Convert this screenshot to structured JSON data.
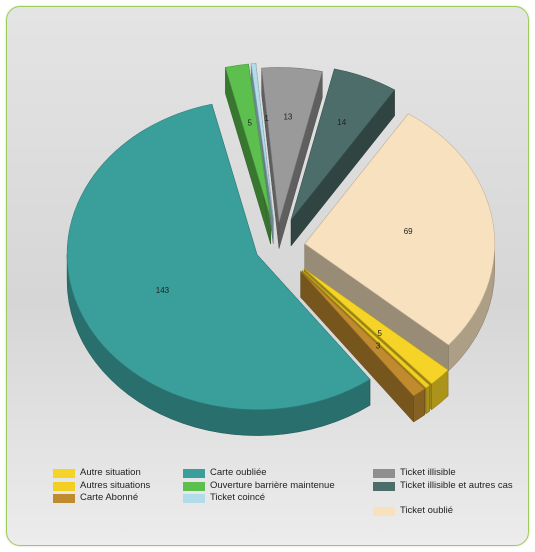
{
  "chart_data": {
    "type": "pie",
    "title": "",
    "style": "3d-exploded",
    "legend_position": "bottom",
    "slices": [
      {
        "label": "Autre situation",
        "value": 5,
        "color": "#f5d327"
      },
      {
        "label": "Autres situations",
        "value": 1,
        "color": "#f2cf22"
      },
      {
        "label": "Carte Abonné",
        "value": 3,
        "color": "#c08b2f"
      },
      {
        "label": "Carte oubliée",
        "value": 143,
        "color": "#3a9e9b"
      },
      {
        "label": "Ouverture barrière maintenue",
        "value": 5,
        "color": "#5cbf4e"
      },
      {
        "label": "Ticket coincé",
        "value": 1,
        "color": "#b2dcea"
      },
      {
        "label": "Ticket illisible",
        "value": 13,
        "color": "#9a9a9a"
      },
      {
        "label": "Ticket illisible et autres cas",
        "value": 14,
        "color": "#4d6d6a"
      },
      {
        "label": "Ticket oublié",
        "value": 69,
        "color": "#f7e1bf"
      }
    ],
    "data_labels": [
      {
        "slice": "Carte oubliée",
        "text": "143"
      },
      {
        "slice": "Ticket oublié",
        "text": "69"
      },
      {
        "slice": "Ticket illisible et autres cas",
        "text": "14"
      },
      {
        "slice": "Ticket illisible",
        "text": "13"
      },
      {
        "slice": "Ouverture barrière maintenue",
        "text": "5"
      },
      {
        "slice": "Ticket coincé",
        "text": "1"
      },
      {
        "slice": "Autre situation",
        "text": "5"
      },
      {
        "slice": "Carte Abonné",
        "text": "3"
      }
    ]
  },
  "legend": {
    "columns": [
      [
        {
          "label": "Autre situation",
          "color": "#f5d327"
        },
        {
          "label": "Autres situations",
          "color": "#f2cf22"
        },
        {
          "label": "Carte Abonné",
          "color": "#c08b2f"
        }
      ],
      [
        {
          "label": "Carte oubliée",
          "color": "#3a9e9b"
        },
        {
          "label": "Ouverture barrière maintenue",
          "color": "#5cbf4e"
        },
        {
          "label": "Ticket coincé",
          "color": "#b2dcea"
        }
      ],
      [
        {
          "label": "Ticket illisible",
          "color": "#8f8f8f"
        },
        {
          "label": "Ticket illisible et autres cas",
          "color": "#4d6d6a"
        },
        {
          "label": "Ticket oublié",
          "color": "#f7e1bf"
        }
      ]
    ]
  }
}
